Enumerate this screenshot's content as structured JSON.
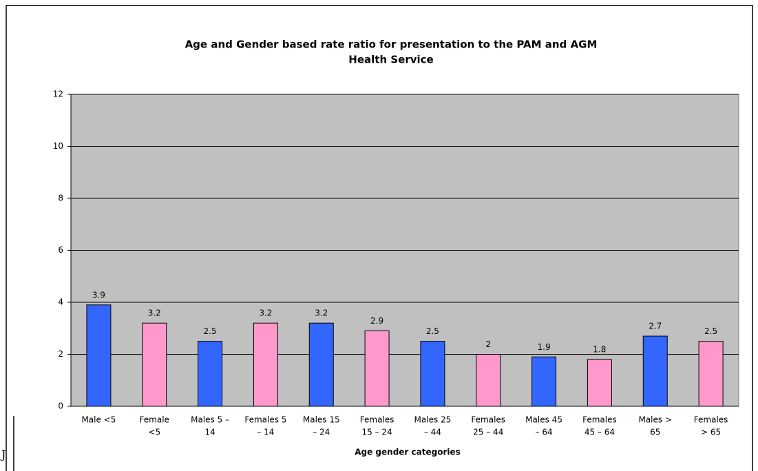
{
  "fragment": "J",
  "chart_data": {
    "type": "bar",
    "title": [
      "Age and Gender based rate ratio for presentation to the PAM and AGM",
      "Health Service"
    ],
    "xlabel": "Age gender categories",
    "categories": [
      [
        "Male <5"
      ],
      [
        "Female",
        "<5"
      ],
      [
        "Males 5 –",
        "14"
      ],
      [
        "Females 5",
        "– 14"
      ],
      [
        "Males 15",
        "– 24"
      ],
      [
        "Females",
        "15 – 24"
      ],
      [
        "Males 25",
        "– 44"
      ],
      [
        "Females",
        "25 – 44"
      ],
      [
        "Males 45",
        "– 64"
      ],
      [
        "Females",
        "45 – 64"
      ],
      [
        "Males >",
        "65"
      ],
      [
        "Females",
        "> 65"
      ]
    ],
    "values": [
      3.9,
      3.2,
      2.5,
      3.2,
      3.2,
      2.9,
      2.5,
      2,
      1.9,
      1.8,
      2.7,
      2.5
    ],
    "colors": [
      "#3366ff",
      "#ff99cc",
      "#3366ff",
      "#ff99cc",
      "#3366ff",
      "#ff99cc",
      "#3366ff",
      "#ff99cc",
      "#3366ff",
      "#ff99cc",
      "#3366ff",
      "#ff99cc"
    ],
    "ylim": [
      0,
      12
    ],
    "yticks": [
      0,
      2,
      4,
      6,
      8,
      10,
      12
    ],
    "grid": true,
    "plot_background": "#c0c0c0"
  }
}
